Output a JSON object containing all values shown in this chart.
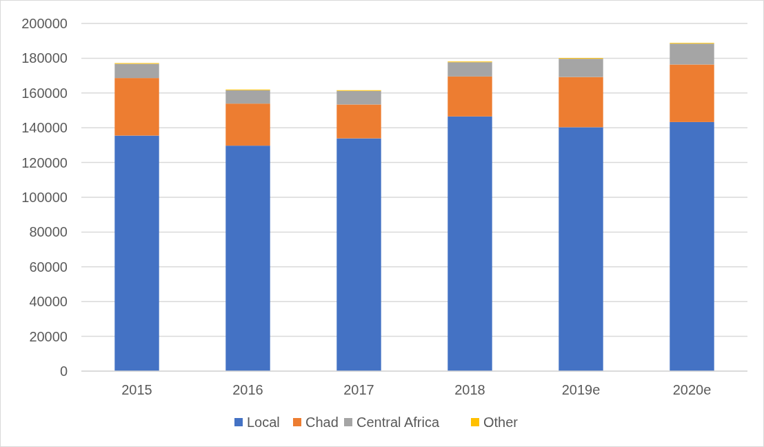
{
  "chart_data": {
    "type": "bar",
    "stacked": true,
    "categories": [
      "2015",
      "2016",
      "2017",
      "2018",
      "2019e",
      "2020e"
    ],
    "series": [
      {
        "name": "Local",
        "color": "#4472c4",
        "values": [
          135500,
          129700,
          133900,
          146500,
          140300,
          143300
        ]
      },
      {
        "name": "Chad",
        "color": "#ed7d31",
        "values": [
          33100,
          24200,
          19500,
          23000,
          28900,
          33100
        ]
      },
      {
        "name": "Central Africa",
        "color": "#a5a5a5",
        "values": [
          8200,
          7700,
          7800,
          8200,
          10500,
          12000
        ]
      },
      {
        "name": "Other",
        "color": "#ffc000",
        "values": [
          400,
          400,
          400,
          400,
          400,
          400
        ]
      }
    ],
    "ylim": [
      0,
      200000
    ],
    "yticks": [
      0,
      20000,
      40000,
      60000,
      80000,
      100000,
      120000,
      140000,
      160000,
      180000,
      200000
    ],
    "grid": "y",
    "legend": "bottom"
  }
}
